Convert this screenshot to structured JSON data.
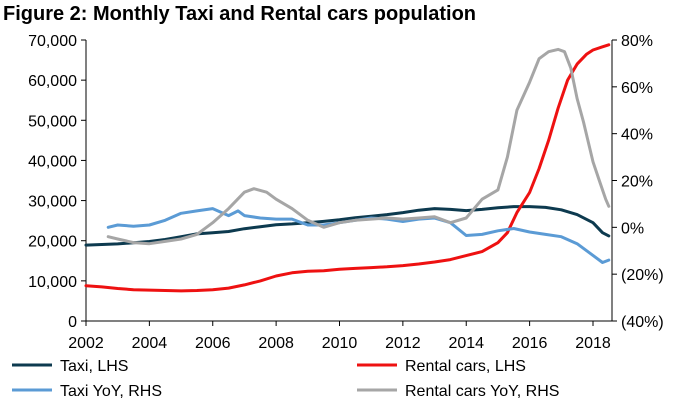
{
  "chart_data": {
    "type": "line",
    "title": "Figure 2: Monthly Taxi and Rental cars population",
    "xlabel": "",
    "ylabel": "",
    "x_ticks": [
      "2002",
      "2004",
      "2006",
      "2008",
      "2010",
      "2012",
      "2014",
      "2016",
      "2018"
    ],
    "xlim": [
      2002,
      2018.6
    ],
    "y_left": {
      "ylim": [
        0,
        70000
      ],
      "ticks": [
        "0",
        "10,000",
        "20,000",
        "30,000",
        "40,000",
        "50,000",
        "60,000",
        "70,000"
      ]
    },
    "y_right": {
      "ylim": [
        -0.4,
        0.8
      ],
      "ticks": [
        "(40%)",
        "(20%)",
        "0%",
        "20%",
        "40%",
        "60%",
        "80%"
      ]
    },
    "grid": false,
    "legend_position": "bottom",
    "series": [
      {
        "name": "Taxi, LHS",
        "axis": "left",
        "color": "#0d3a4f",
        "x": [
          2002.0,
          2003.0,
          2003.5,
          2004.0,
          2004.5,
          2005.0,
          2005.5,
          2006.0,
          2006.5,
          2007.0,
          2007.5,
          2008.0,
          2008.5,
          2009.0,
          2009.5,
          2010.0,
          2010.5,
          2011.0,
          2011.5,
          2012.0,
          2012.5,
          2013.0,
          2013.5,
          2014.0,
          2014.5,
          2015.0,
          2015.5,
          2016.0,
          2016.5,
          2017.0,
          2017.5,
          2018.0,
          2018.3,
          2018.5
        ],
        "y": [
          18900,
          19200,
          19500,
          19800,
          20300,
          21000,
          21700,
          22000,
          22300,
          23000,
          23500,
          24000,
          24200,
          24500,
          24800,
          25200,
          25700,
          26100,
          26500,
          27000,
          27600,
          28000,
          27800,
          27500,
          27800,
          28200,
          28500,
          28500,
          28300,
          27700,
          26500,
          24500,
          22000,
          21200
        ]
      },
      {
        "name": "Rental cars, LHS",
        "axis": "left",
        "color": "#ee1111",
        "x": [
          2002.0,
          2002.5,
          2003.0,
          2003.5,
          2004.0,
          2004.5,
          2005.0,
          2005.5,
          2006.0,
          2006.5,
          2007.0,
          2007.5,
          2008.0,
          2008.5,
          2009.0,
          2009.5,
          2010.0,
          2010.5,
          2011.0,
          2011.5,
          2012.0,
          2012.5,
          2013.0,
          2013.5,
          2014.0,
          2014.5,
          2015.0,
          2015.3,
          2015.6,
          2016.0,
          2016.3,
          2016.6,
          2016.9,
          2017.2,
          2017.5,
          2017.8,
          2018.0,
          2018.3,
          2018.5
        ],
        "y": [
          8800,
          8500,
          8100,
          7800,
          7700,
          7600,
          7500,
          7600,
          7800,
          8200,
          9000,
          10000,
          11200,
          12000,
          12400,
          12500,
          12900,
          13100,
          13300,
          13500,
          13800,
          14200,
          14700,
          15300,
          16300,
          17300,
          19500,
          22000,
          27000,
          32000,
          38000,
          45000,
          53000,
          60000,
          64000,
          66500,
          67500,
          68300,
          68800
        ]
      },
      {
        "name": "Taxi YoY, RHS",
        "axis": "right",
        "color": "#5b9bd5",
        "x": [
          2002.7,
          2003.0,
          2003.5,
          2004.0,
          2004.5,
          2005.0,
          2005.5,
          2006.0,
          2006.5,
          2006.8,
          2007.0,
          2007.5,
          2008.0,
          2008.5,
          2009.0,
          2009.5,
          2010.0,
          2010.5,
          2011.0,
          2011.5,
          2012.0,
          2012.5,
          2013.0,
          2013.5,
          2014.0,
          2014.5,
          2015.0,
          2015.5,
          2016.0,
          2016.5,
          2017.0,
          2017.5,
          2018.0,
          2018.3,
          2018.5
        ],
        "y": [
          0.0,
          0.01,
          0.005,
          0.01,
          0.03,
          0.06,
          0.07,
          0.08,
          0.05,
          0.07,
          0.05,
          0.04,
          0.035,
          0.035,
          0.01,
          0.01,
          0.02,
          0.03,
          0.04,
          0.035,
          0.025,
          0.035,
          0.04,
          0.02,
          -0.035,
          -0.03,
          -0.015,
          -0.005,
          -0.02,
          -0.03,
          -0.04,
          -0.07,
          -0.12,
          -0.15,
          -0.14
        ]
      },
      {
        "name": "Rental cars YoY, RHS",
        "axis": "right",
        "color": "#a6a6a6",
        "x": [
          2002.7,
          2003.0,
          2003.5,
          2004.0,
          2004.5,
          2005.0,
          2005.5,
          2006.0,
          2006.5,
          2007.0,
          2007.3,
          2007.7,
          2008.0,
          2008.5,
          2009.0,
          2009.5,
          2010.0,
          2010.5,
          2011.0,
          2011.5,
          2012.0,
          2012.5,
          2013.0,
          2013.5,
          2014.0,
          2014.5,
          2015.0,
          2015.3,
          2015.6,
          2016.0,
          2016.3,
          2016.6,
          2016.9,
          2017.1,
          2017.3,
          2017.5,
          2017.7,
          2018.0,
          2018.2,
          2018.4,
          2018.5
        ],
        "y": [
          -0.04,
          -0.05,
          -0.065,
          -0.07,
          -0.06,
          -0.05,
          -0.03,
          0.02,
          0.08,
          0.15,
          0.165,
          0.15,
          0.12,
          0.08,
          0.03,
          0.0,
          0.02,
          0.03,
          0.035,
          0.04,
          0.035,
          0.04,
          0.045,
          0.02,
          0.04,
          0.12,
          0.16,
          0.3,
          0.5,
          0.62,
          0.72,
          0.75,
          0.76,
          0.75,
          0.68,
          0.55,
          0.45,
          0.28,
          0.2,
          0.12,
          0.09
        ]
      }
    ]
  }
}
